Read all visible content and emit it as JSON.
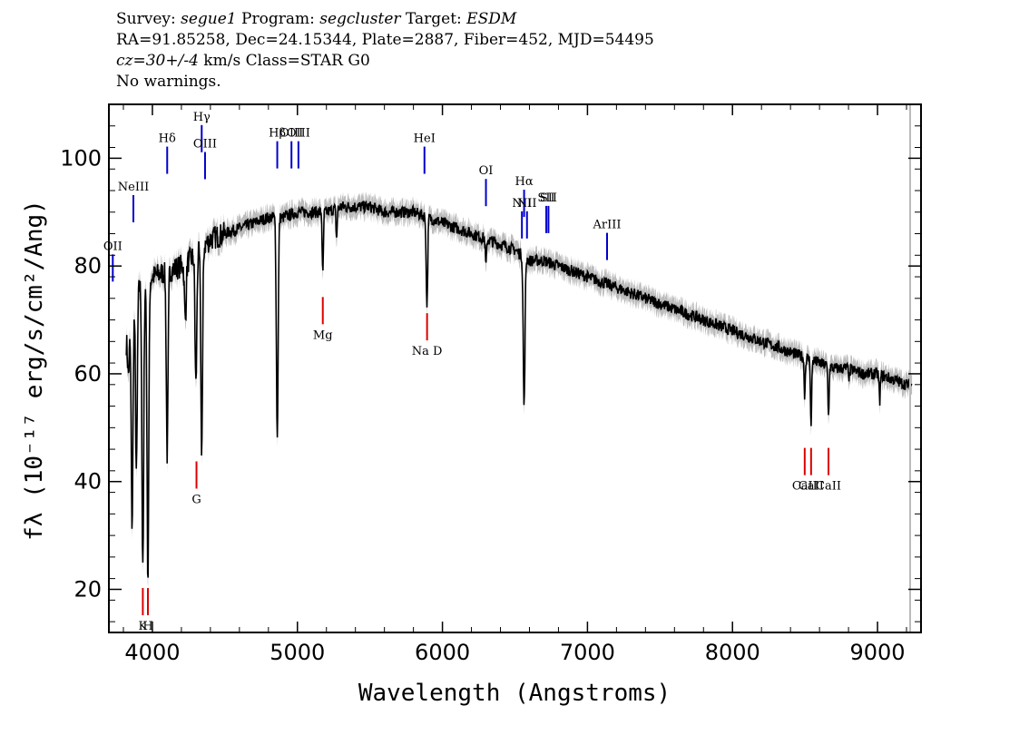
{
  "header": {
    "line1": {
      "survey_label": "Survey: ",
      "survey": "segue1",
      "program_label": " Program: ",
      "program": "segcluster",
      "target_label": " Target: ",
      "target": "ESDM"
    },
    "line2": "RA=91.85258, Dec=24.15344, Plate=2887, Fiber=452, MJD=54495",
    "line3": {
      "cz": "cz=30+/-4",
      "rest": " km/s Class=STAR G0"
    },
    "line4": "No warnings."
  },
  "colors": {
    "emission": "#0000cc",
    "absorption": "#dd0000",
    "flux": "#000000",
    "error": "#bbbbbb"
  },
  "chart_data": {
    "type": "line",
    "xlabel": "Wavelength (Angstroms)",
    "ylabel": "fλ (10⁻¹⁷ erg/s/cm²/Ang)",
    "xlim": [
      3700,
      9300
    ],
    "ylim": [
      12,
      110
    ],
    "x_ticks": [
      4000,
      5000,
      6000,
      7000,
      8000,
      9000
    ],
    "y_ticks": [
      20,
      40,
      60,
      80,
      100
    ],
    "continuum": [
      [
        3820,
        66
      ],
      [
        3900,
        76
      ],
      [
        4000,
        78
      ],
      [
        4100,
        79
      ],
      [
        4200,
        80
      ],
      [
        4300,
        82
      ],
      [
        4400,
        85
      ],
      [
        4500,
        86
      ],
      [
        4600,
        87
      ],
      [
        4700,
        88
      ],
      [
        4800,
        89
      ],
      [
        4900,
        89
      ],
      [
        5000,
        90
      ],
      [
        5100,
        90
      ],
      [
        5200,
        90
      ],
      [
        5300,
        91
      ],
      [
        5400,
        91
      ],
      [
        5500,
        91
      ],
      [
        5600,
        90
      ],
      [
        5700,
        90
      ],
      [
        5800,
        90
      ],
      [
        5900,
        89
      ],
      [
        6000,
        88
      ],
      [
        6100,
        87
      ],
      [
        6200,
        86
      ],
      [
        6300,
        85
      ],
      [
        6400,
        84
      ],
      [
        6500,
        83
      ],
      [
        6600,
        81
      ],
      [
        6700,
        81
      ],
      [
        6800,
        80
      ],
      [
        6900,
        79
      ],
      [
        7000,
        78
      ],
      [
        7100,
        77
      ],
      [
        7200,
        76
      ],
      [
        7300,
        75
      ],
      [
        7400,
        74
      ],
      [
        7500,
        73
      ],
      [
        7600,
        72
      ],
      [
        7700,
        71
      ],
      [
        7800,
        70
      ],
      [
        7900,
        69
      ],
      [
        8000,
        68
      ],
      [
        8100,
        67
      ],
      [
        8200,
        66
      ],
      [
        8300,
        65
      ],
      [
        8400,
        64
      ],
      [
        8500,
        63
      ],
      [
        8600,
        62
      ],
      [
        8700,
        61
      ],
      [
        8800,
        61
      ],
      [
        8900,
        60
      ],
      [
        9000,
        60
      ],
      [
        9100,
        59
      ],
      [
        9200,
        58
      ]
    ],
    "absorption_features": [
      [
        3835,
        60
      ],
      [
        3860,
        32
      ],
      [
        3890,
        42
      ],
      [
        3934,
        23
      ],
      [
        3969,
        22
      ],
      [
        4102,
        45
      ],
      [
        4227,
        70
      ],
      [
        4300,
        58
      ],
      [
        4340,
        46
      ],
      [
        4861,
        48
      ],
      [
        5175,
        78
      ],
      [
        5270,
        85
      ],
      [
        5890,
        79
      ],
      [
        5896,
        78
      ],
      [
        6300,
        80
      ],
      [
        6563,
        54
      ],
      [
        8498,
        56
      ],
      [
        8542,
        50
      ],
      [
        8662,
        52
      ],
      [
        8806,
        59
      ],
      [
        9015,
        55
      ]
    ],
    "emission_lines": [
      {
        "label": "OII",
        "x": 3727,
        "label_y": 83
      },
      {
        "label": "NeIII",
        "x": 3869,
        "label_y": 94
      },
      {
        "label": "Hδ",
        "x": 4102,
        "label_y": 103
      },
      {
        "label": "Hγ",
        "x": 4340,
        "label_y": 107
      },
      {
        "label": "OIII",
        "x": 4363,
        "label_y": 102
      },
      {
        "label": "Hβ",
        "x": 4861,
        "label_y": 104
      },
      {
        "label": "OIII",
        "x": 4959,
        "label_y": 104
      },
      {
        "label": "OIII",
        "x": 5007,
        "label_y": 104
      },
      {
        "label": "HeI",
        "x": 5876,
        "label_y": 103
      },
      {
        "label": "OI",
        "x": 6300,
        "label_y": 97
      },
      {
        "label": "NII",
        "x": 6548,
        "label_y": 91
      },
      {
        "label": "Hα",
        "x": 6563,
        "label_y": 95
      },
      {
        "label": "NII",
        "x": 6583,
        "label_y": 91
      },
      {
        "label": "SII",
        "x": 6716,
        "label_y": 92
      },
      {
        "label": "SII",
        "x": 6731,
        "label_y": 92
      },
      {
        "label": "ArIII",
        "x": 7135,
        "label_y": 87
      }
    ],
    "absorption_lines": [
      {
        "label": "K",
        "x": 3934,
        "label_y": 12.5
      },
      {
        "label": "H",
        "x": 3969,
        "label_y": 12.5
      },
      {
        "label": "G",
        "x": 4304,
        "label_y": 36
      },
      {
        "label": "Mg",
        "x": 5175,
        "label_y": 66.5
      },
      {
        "label": "Na D",
        "x": 5894,
        "label_y": 63.5
      },
      {
        "label": "CaII",
        "x": 8498,
        "label_y": 38.5
      },
      {
        "label": "CaII",
        "x": 8542,
        "label_y": 38.5
      },
      {
        "label": "CaII",
        "x": 8662,
        "label_y": 38.5
      }
    ]
  }
}
